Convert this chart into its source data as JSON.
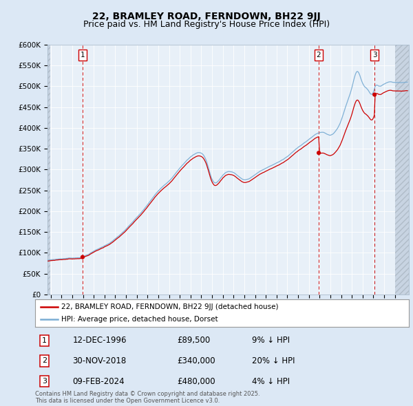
{
  "title": "22, BRAMLEY ROAD, FERNDOWN, BH22 9JJ",
  "subtitle": "Price paid vs. HM Land Registry's House Price Index (HPI)",
  "ylim": [
    0,
    600000
  ],
  "yticks": [
    0,
    50000,
    100000,
    150000,
    200000,
    250000,
    300000,
    350000,
    400000,
    450000,
    500000,
    550000,
    600000
  ],
  "ytick_labels": [
    "£0",
    "£50K",
    "£100K",
    "£150K",
    "£200K",
    "£250K",
    "£300K",
    "£350K",
    "£400K",
    "£450K",
    "£500K",
    "£550K",
    "£600K"
  ],
  "xlim_start": 1993.7,
  "xlim_end": 2027.3,
  "hpi_color": "#7aadd4",
  "price_color": "#cc0000",
  "background_color": "#dce8f5",
  "plot_bg_color": "#e8f0f8",
  "grid_color": "#ffffff",
  "transaction_dates": [
    1996.96,
    2018.92,
    2024.11
  ],
  "transaction_prices": [
    89500,
    340000,
    480000
  ],
  "transaction_labels": [
    "1",
    "2",
    "3"
  ],
  "sale_info": [
    {
      "label": "1",
      "date": "12-DEC-1996",
      "price": "£89,500",
      "vs_hpi": "9% ↓ HPI"
    },
    {
      "label": "2",
      "date": "30-NOV-2018",
      "price": "£340,000",
      "vs_hpi": "20% ↓ HPI"
    },
    {
      "label": "3",
      "date": "09-FEB-2024",
      "price": "£480,000",
      "vs_hpi": "4% ↓ HPI"
    }
  ],
  "legend_entries": [
    "22, BRAMLEY ROAD, FERNDOWN, BH22 9JJ (detached house)",
    "HPI: Average price, detached house, Dorset"
  ],
  "footer_text": "Contains HM Land Registry data © Crown copyright and database right 2025.\nThis data is licensed under the Open Government Licence v3.0.",
  "title_fontsize": 10,
  "subtitle_fontsize": 9,
  "tick_fontsize": 7.5
}
